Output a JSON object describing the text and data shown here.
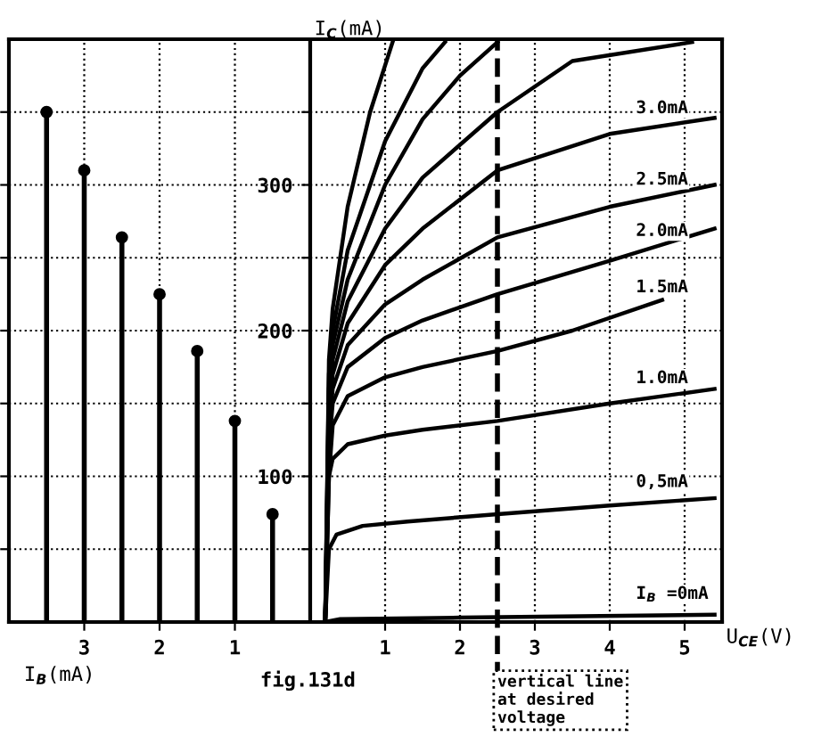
{
  "chart_data": [
    {
      "type": "lollipop",
      "xlabel": "I$_{B}$(mA)",
      "xlim": [
        4,
        0
      ],
      "xticks": [
        1,
        2,
        3
      ],
      "ylim": [
        0,
        400
      ],
      "yticks": [
        {
          "value": 50,
          "label": null
        },
        100,
        {
          "value": 150,
          "label": null
        },
        200,
        {
          "value": 250,
          "label": null
        },
        300,
        {
          "value": 350,
          "label": null
        }
      ],
      "x": [
        0.5,
        1,
        1.5,
        2,
        2.5,
        3,
        3.5
      ],
      "values": [
        74,
        138,
        186,
        225,
        264,
        310,
        350
      ],
      "color": "#000000",
      "marker": "circle",
      "grid": true,
      "tick_labels": "x"
    },
    {
      "type": "line",
      "xlabel": "U$_{CE}$(V)",
      "ylabel": "I$_{C}$(mA)",
      "xlim": [
        0,
        5.5
      ],
      "xticks": [
        1,
        2,
        3,
        4,
        5
      ],
      "ylim": [
        0,
        400
      ],
      "yticks": [
        {
          "value": 50,
          "label": null
        },
        100,
        {
          "value": 150,
          "label": null
        },
        200,
        {
          "value": 250,
          "label": null
        },
        300,
        {
          "value": 350,
          "label": null
        }
      ],
      "grid": true,
      "line_style": "solid",
      "series": [
        {
          "name": "I$_{B}$ =0mA",
          "color": "#000000",
          "x": [
            0.2,
            0.4,
            2,
            5.4
          ],
          "values": [
            0,
            2,
            3,
            5
          ]
        },
        {
          "name": "0,5mA",
          "color": "#000000",
          "x": [
            0.2,
            0.25,
            0.35,
            0.7,
            1.3,
            2.5,
            4,
            5.4
          ],
          "values": [
            0,
            50,
            60,
            66,
            69,
            74,
            80,
            85
          ]
        },
        {
          "name": "1.0mA",
          "color": "#000000",
          "x": [
            0.2,
            0.25,
            0.3,
            0.5,
            1,
            1.5,
            2.5,
            4,
            5.4
          ],
          "values": [
            0,
            100,
            112,
            122,
            128,
            132,
            138,
            150,
            160
          ]
        },
        {
          "name": "1.5mA",
          "color": "#000000",
          "x": [
            0.2,
            0.25,
            0.3,
            0.5,
            1,
            1.5,
            2.5,
            3.5,
            4.7
          ],
          "values": [
            0,
            100,
            135,
            155,
            168,
            175,
            186,
            200,
            221
          ]
        },
        {
          "name": "2.0mA",
          "color": "#000000",
          "x": [
            0.2,
            0.25,
            0.3,
            0.5,
            1,
            1.5,
            2.5,
            4,
            5.4
          ],
          "values": [
            0,
            120,
            150,
            175,
            195,
            207,
            225,
            248,
            270
          ]
        },
        {
          "name": "2.5mA",
          "color": "#000000",
          "x": [
            0.2,
            0.25,
            0.3,
            0.5,
            1,
            1.5,
            2.5,
            4,
            5.4
          ],
          "values": [
            0,
            130,
            160,
            190,
            218,
            235,
            264,
            285,
            300
          ]
        },
        {
          "name": "3.0mA",
          "color": "#000000",
          "x": [
            0.2,
            0.25,
            0.3,
            0.5,
            1,
            1.5,
            2.5,
            4,
            5.4
          ],
          "values": [
            0,
            140,
            170,
            205,
            245,
            270,
            310,
            335,
            346
          ]
        },
        {
          "color": "#000000",
          "x": [
            0.2,
            0.25,
            0.3,
            0.5,
            1,
            1.5,
            2.5,
            3.5,
            5.1
          ],
          "values": [
            0,
            150,
            180,
            220,
            270,
            305,
            350,
            385,
            398
          ]
        },
        {
          "color": "#000000",
          "x": [
            0.2,
            0.25,
            0.3,
            0.5,
            1,
            1.5,
            2,
            2.5
          ],
          "values": [
            0,
            160,
            190,
            235,
            300,
            345,
            375,
            398
          ]
        },
        {
          "color": "#000000",
          "x": [
            0.2,
            0.25,
            0.3,
            0.5,
            1,
            1.5,
            1.8
          ],
          "values": [
            0,
            170,
            200,
            255,
            330,
            380,
            398
          ]
        },
        {
          "color": "#000000",
          "x": [
            0.2,
            0.25,
            0.3,
            0.5,
            0.8,
            1.1
          ],
          "values": [
            0,
            180,
            215,
            285,
            350,
            398
          ]
        }
      ],
      "ref_lines": [
        {
          "axis": "x",
          "value": 2.5,
          "label": "vertical line\nat desired\nvoltage",
          "line_style": "dashed",
          "color": "#000000"
        }
      ],
      "annotations": [
        "fig.131d"
      ]
    }
  ]
}
